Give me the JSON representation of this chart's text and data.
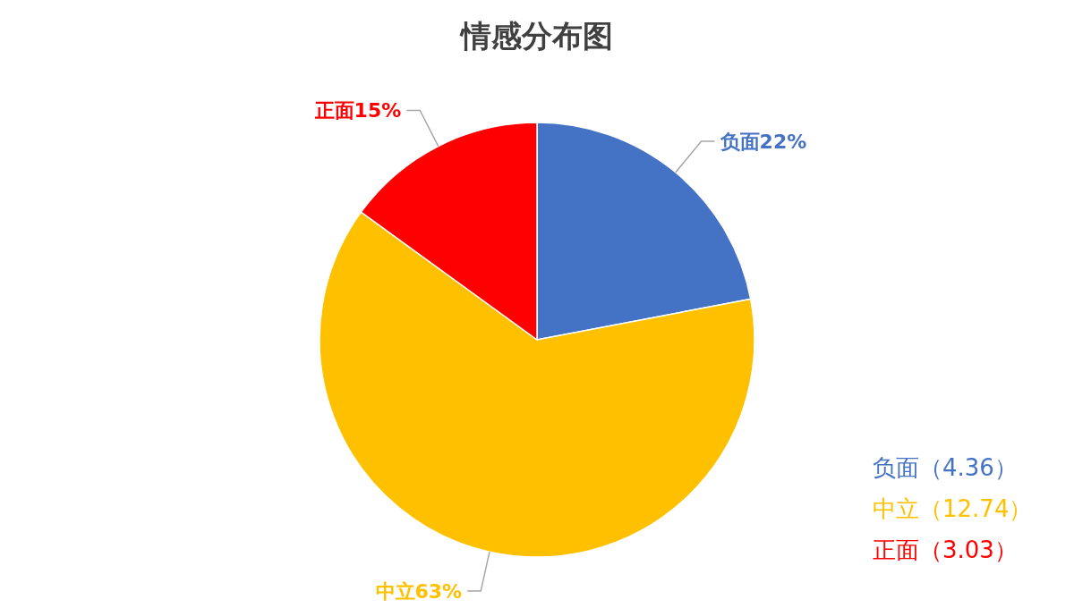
{
  "chart_data": {
    "type": "pie",
    "title": "情感分布图",
    "categories": [
      "负面",
      "中立",
      "正面"
    ],
    "values": [
      22,
      63,
      15
    ],
    "value_labels": [
      "22%",
      "63%",
      "15%"
    ],
    "colors": [
      "#4472c4",
      "#ffc000",
      "#ff0000"
    ],
    "annotations": [
      "负面（4.36）",
      "中立（12.74）",
      "正面（3.03）"
    ]
  }
}
